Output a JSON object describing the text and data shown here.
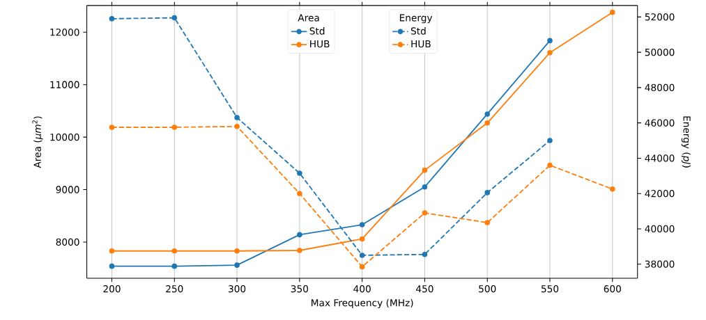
{
  "chart_data": {
    "type": "line",
    "xlabel": "Max Frequency (MHz)",
    "ylabel": "Area (*μm*$^{2}$)",
    "y2label": "Energy (*pJ*)",
    "legend_title": [
      "Area",
      "Energy"
    ],
    "x": [
      200,
      250,
      300,
      350,
      400,
      450,
      500,
      550,
      600
    ],
    "xlim": [
      180,
      620
    ],
    "xticks": [
      200,
      250,
      300,
      350,
      400,
      450,
      500,
      550,
      600
    ],
    "ylim": [
      7310,
      12510
    ],
    "yticks": [
      8000,
      9000,
      10000,
      11000,
      12000
    ],
    "y2lim": [
      37200,
      52650
    ],
    "y2ticks": [
      38000,
      40000,
      42000,
      44000,
      46000,
      48000,
      50000,
      52000
    ],
    "grid": "x",
    "legend": "top",
    "marker": "circle",
    "series": [
      {
        "name": "Std",
        "color": "#1f77b4",
        "axis": "y",
        "line_style": "solid",
        "values": [
          7540,
          7540,
          7560,
          8140,
          8330,
          9050,
          10440,
          11840,
          null
        ]
      },
      {
        "name": "HUB",
        "color": "#ff7f0e",
        "axis": "y",
        "line_style": "solid",
        "values": [
          7830,
          7830,
          7830,
          7840,
          8060,
          9370,
          10270,
          11610,
          12380
        ]
      },
      {
        "name": "Std",
        "color": "#1f77b4",
        "axis": "y2",
        "line_style": "dashed",
        "values": [
          51900,
          51950,
          46300,
          43150,
          38500,
          38550,
          42050,
          45000,
          null
        ]
      },
      {
        "name": "HUB",
        "color": "#ff7f0e",
        "axis": "y2",
        "line_style": "dashed",
        "values": [
          45750,
          45750,
          45800,
          42000,
          37850,
          40900,
          40350,
          43600,
          42250
        ]
      }
    ]
  }
}
